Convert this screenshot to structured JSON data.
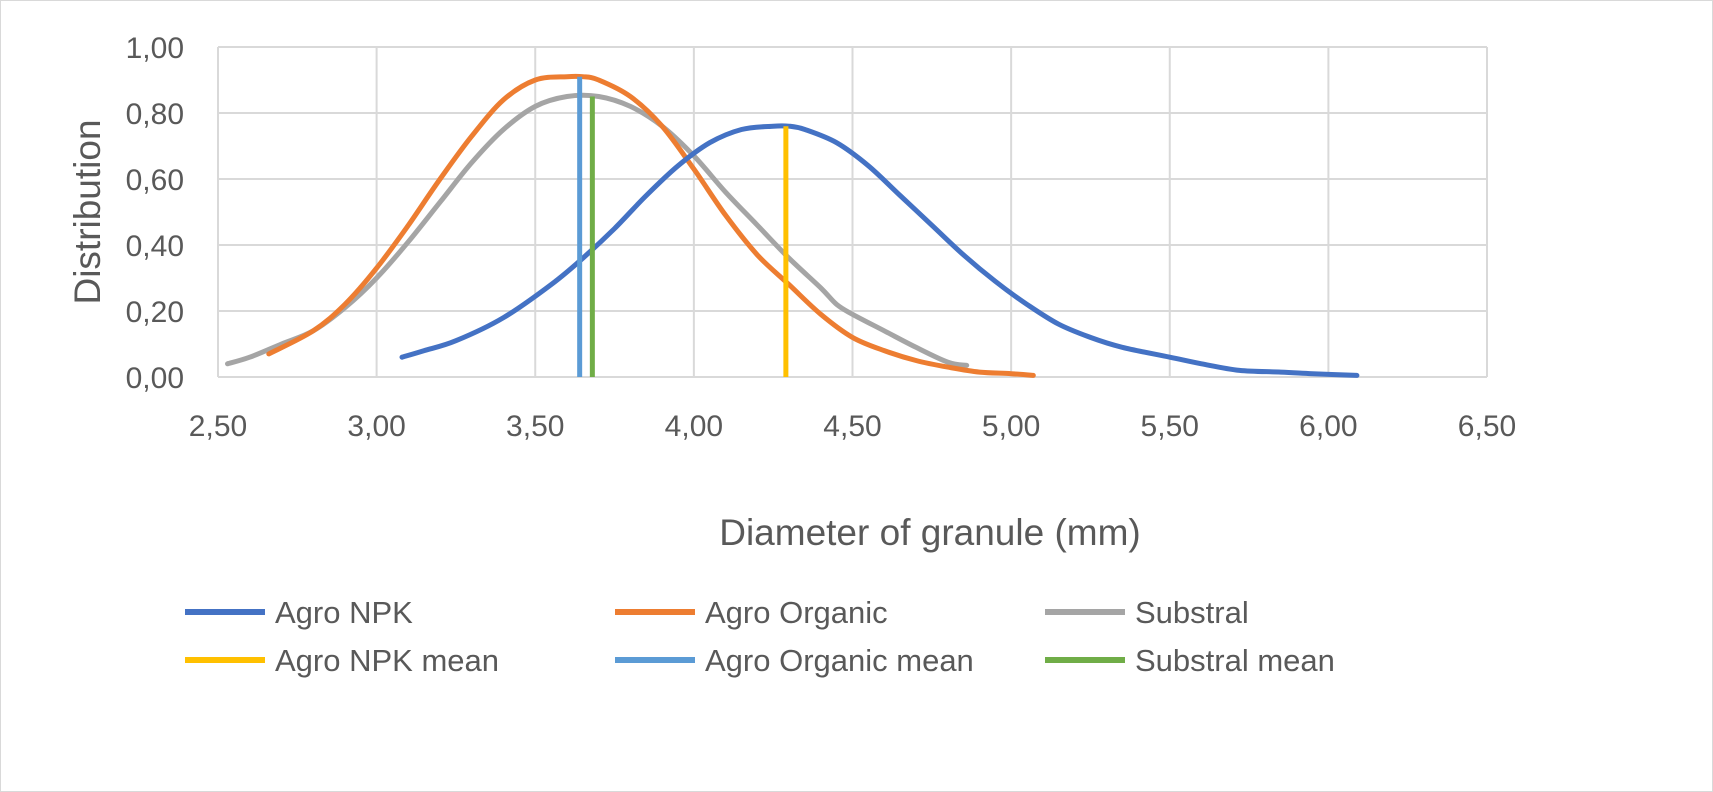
{
  "chart_data": {
    "type": "line",
    "title": "",
    "xlabel": "Diameter of granule (mm)",
    "ylabel": "Distribution",
    "xlim": [
      2.5,
      6.5
    ],
    "ylim": [
      0,
      1
    ],
    "x_ticks": [
      "2,50",
      "3,00",
      "3,50",
      "4,00",
      "4,50",
      "5,00",
      "5,50",
      "6,00",
      "6,50"
    ],
    "y_ticks": [
      "0,00",
      "0,20",
      "0,40",
      "0,60",
      "0,80",
      "1,00"
    ],
    "grid": true,
    "legend_position": "bottom",
    "series": [
      {
        "name": "Agro NPK",
        "color": "#4472c4",
        "x": [
          3.08,
          3.15,
          3.25,
          3.4,
          3.55,
          3.65,
          3.75,
          3.85,
          3.95,
          4.05,
          4.15,
          4.25,
          4.3,
          4.35,
          4.45,
          4.55,
          4.65,
          4.75,
          4.85,
          4.95,
          5.05,
          5.15,
          5.25,
          5.35,
          5.5,
          5.6,
          5.72,
          5.85,
          5.95,
          6.09
        ],
        "y": [
          0.06,
          0.08,
          0.11,
          0.18,
          0.28,
          0.36,
          0.45,
          0.55,
          0.64,
          0.71,
          0.75,
          0.76,
          0.76,
          0.75,
          0.71,
          0.64,
          0.55,
          0.46,
          0.37,
          0.29,
          0.22,
          0.16,
          0.12,
          0.09,
          0.06,
          0.04,
          0.02,
          0.015,
          0.01,
          0.005
        ]
      },
      {
        "name": "Agro Organic",
        "color": "#ed7d31",
        "x": [
          2.66,
          2.8,
          2.9,
          3.0,
          3.1,
          3.2,
          3.3,
          3.4,
          3.5,
          3.6,
          3.65,
          3.7,
          3.8,
          3.9,
          4.0,
          4.1,
          4.2,
          4.3,
          4.4,
          4.5,
          4.6,
          4.7,
          4.8,
          4.9,
          5.0,
          5.07
        ],
        "y": [
          0.07,
          0.14,
          0.22,
          0.33,
          0.46,
          0.6,
          0.73,
          0.84,
          0.9,
          0.91,
          0.91,
          0.9,
          0.85,
          0.76,
          0.63,
          0.49,
          0.37,
          0.28,
          0.19,
          0.12,
          0.08,
          0.05,
          0.03,
          0.015,
          0.01,
          0.005
        ]
      },
      {
        "name": "Substral",
        "color": "#a5a5a5",
        "x": [
          2.53,
          2.6,
          2.7,
          2.8,
          2.9,
          3.0,
          3.1,
          3.2,
          3.3,
          3.4,
          3.5,
          3.6,
          3.7,
          3.8,
          3.9,
          4.0,
          4.1,
          4.2,
          4.3,
          4.4,
          4.45,
          4.5,
          4.6,
          4.7,
          4.8,
          4.86
        ],
        "y": [
          0.04,
          0.06,
          0.1,
          0.14,
          0.21,
          0.3,
          0.41,
          0.53,
          0.65,
          0.75,
          0.82,
          0.85,
          0.85,
          0.82,
          0.76,
          0.67,
          0.56,
          0.46,
          0.36,
          0.27,
          0.22,
          0.19,
          0.14,
          0.09,
          0.045,
          0.035
        ]
      }
    ],
    "mean_lines": [
      {
        "name": "Agro NPK mean",
        "color": "#ffc000",
        "x": 4.29,
        "y_top": 0.76
      },
      {
        "name": "Agro Organic mean",
        "color": "#5b9bd5",
        "x": 3.64,
        "y_top": 0.91
      },
      {
        "name": "Substral mean",
        "color": "#70ad47",
        "x": 3.68,
        "y_top": 0.85
      }
    ]
  }
}
